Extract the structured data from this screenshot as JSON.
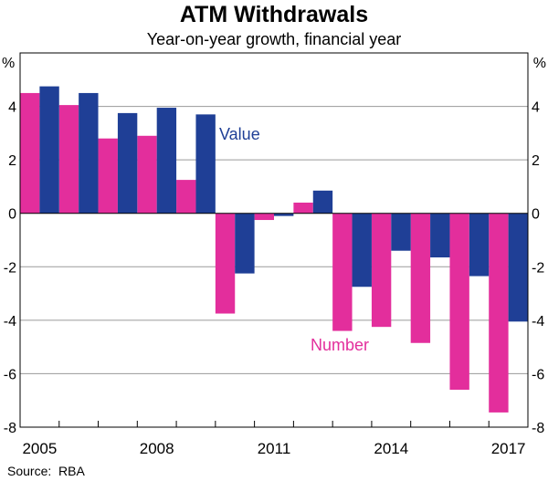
{
  "chart_data": {
    "type": "bar",
    "title": "ATM Withdrawals",
    "subtitle": "Year-on-year growth, financial year",
    "ylabel_left": "%",
    "ylabel_right": "%",
    "ylim": [
      -8,
      6
    ],
    "yticks": [
      -8,
      -6,
      -4,
      -2,
      0,
      2,
      4
    ],
    "categories": [
      2005,
      2006,
      2007,
      2008,
      2009,
      2010,
      2011,
      2012,
      2013,
      2014,
      2015,
      2016,
      2017
    ],
    "xtick_labels": [
      {
        "year": 2005,
        "label": "2005"
      },
      {
        "year": 2008,
        "label": "2008"
      },
      {
        "year": 2011,
        "label": "2011"
      },
      {
        "year": 2014,
        "label": "2014"
      },
      {
        "year": 2017,
        "label": "2017"
      }
    ],
    "series": [
      {
        "name": "Number",
        "color": "#e32e9c",
        "values": [
          4.5,
          4.05,
          2.8,
          2.9,
          1.25,
          -3.75,
          -0.25,
          0.4,
          -4.4,
          -4.25,
          -4.85,
          -6.6,
          -7.45
        ]
      },
      {
        "name": "Value",
        "color": "#1f3f96",
        "values": [
          4.75,
          4.5,
          3.75,
          3.95,
          3.7,
          -2.25,
          -0.1,
          0.85,
          -2.75,
          -1.4,
          -1.65,
          -2.35,
          -4.05
        ]
      }
    ],
    "annotations": [
      {
        "text": "Value",
        "series": "Value"
      },
      {
        "text": "Number",
        "series": "Number"
      }
    ],
    "grid": true
  },
  "source_label": "Source:",
  "source_value": "RBA"
}
